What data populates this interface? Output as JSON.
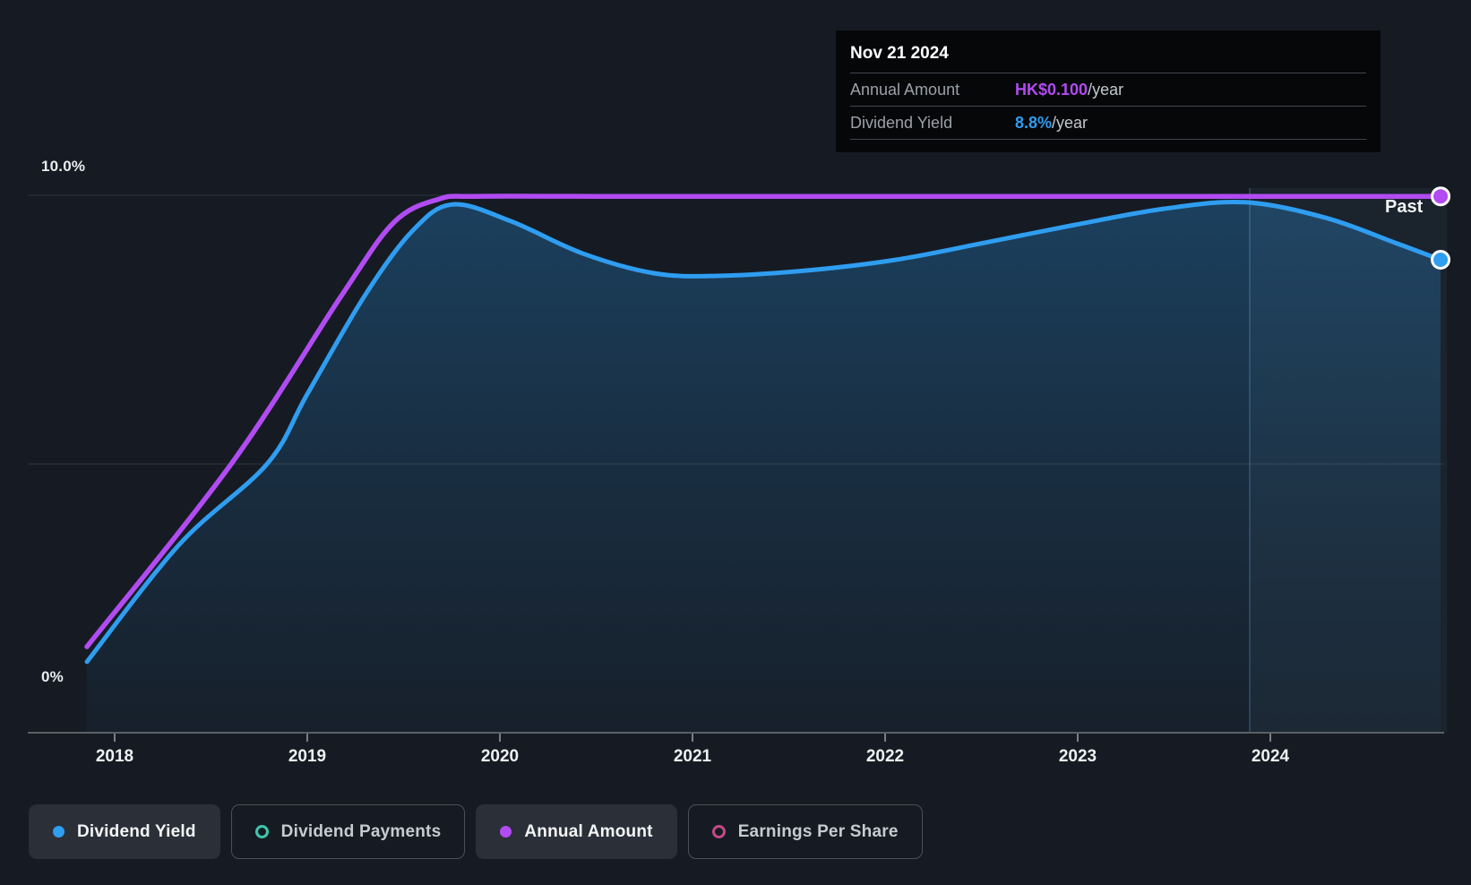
{
  "past_label": "Past",
  "tooltip": {
    "date": "Nov 21 2024",
    "rows": [
      {
        "label": "Annual Amount",
        "value": "HK$0.100",
        "suffix": "/year",
        "color": "#b14bf2"
      },
      {
        "label": "Dividend Yield",
        "value": "8.8%",
        "suffix": "/year",
        "color": "#2f9df0"
      }
    ]
  },
  "legend": {
    "items": [
      {
        "label": "Dividend Yield",
        "marker": "filled",
        "color": "#2f9df0",
        "active": true
      },
      {
        "label": "Dividend Payments",
        "marker": "outline",
        "color": "#3ec6ae",
        "active": false
      },
      {
        "label": "Annual Amount",
        "marker": "filled",
        "color": "#b14bf2",
        "active": true
      },
      {
        "label": "Earnings Per Share",
        "marker": "outline",
        "color": "#c2498a",
        "active": false
      }
    ]
  },
  "chart_data": {
    "type": "area",
    "title": "",
    "x_axis": {
      "ticks": [
        "2018",
        "2019",
        "2020",
        "2021",
        "2022",
        "2023",
        "2024"
      ],
      "range": [
        2017.85,
        2024.93
      ]
    },
    "y_axis": {
      "ticks": [
        "10.0%",
        "0%"
      ],
      "unit": "%",
      "range": [
        0,
        10
      ],
      "gridlines_pct": [
        10,
        5
      ]
    },
    "past_band_start_x": 2023.893,
    "legend_position": "bottom",
    "series": [
      {
        "name": "Dividend Yield",
        "color": "#2f9df0",
        "style": "line+area",
        "end_value": "8.8%/year",
        "points": [
          [
            2017.856,
            1.32
          ],
          [
            2018.335,
            3.5
          ],
          [
            2018.791,
            5.0
          ],
          [
            2019.0,
            6.3
          ],
          [
            2019.298,
            8.13
          ],
          [
            2019.544,
            9.33
          ],
          [
            2019.753,
            9.83
          ],
          [
            2020.056,
            9.52
          ],
          [
            2020.428,
            8.92
          ],
          [
            2020.8,
            8.55
          ],
          [
            2021.126,
            8.5
          ],
          [
            2021.591,
            8.6
          ],
          [
            2022.056,
            8.8
          ],
          [
            2022.521,
            9.12
          ],
          [
            2022.986,
            9.45
          ],
          [
            2023.451,
            9.75
          ],
          [
            2023.87,
            9.87
          ],
          [
            2024.288,
            9.58
          ],
          [
            2024.66,
            9.1
          ],
          [
            2024.884,
            8.8
          ]
        ]
      },
      {
        "name": "Annual Amount",
        "color": "#b14bf2",
        "style": "line",
        "end_value": "HK$0.100/year",
        "points": [
          [
            2017.856,
            1.6
          ],
          [
            2018.605,
            5.0
          ],
          [
            2019.177,
            8.13
          ],
          [
            2019.451,
            9.5
          ],
          [
            2019.684,
            9.93
          ],
          [
            2019.87,
            9.98
          ],
          [
            2020.5,
            9.98
          ],
          [
            2021.5,
            9.98
          ],
          [
            2022.5,
            9.98
          ],
          [
            2023.5,
            9.98
          ],
          [
            2024.884,
            9.98
          ]
        ]
      }
    ]
  }
}
